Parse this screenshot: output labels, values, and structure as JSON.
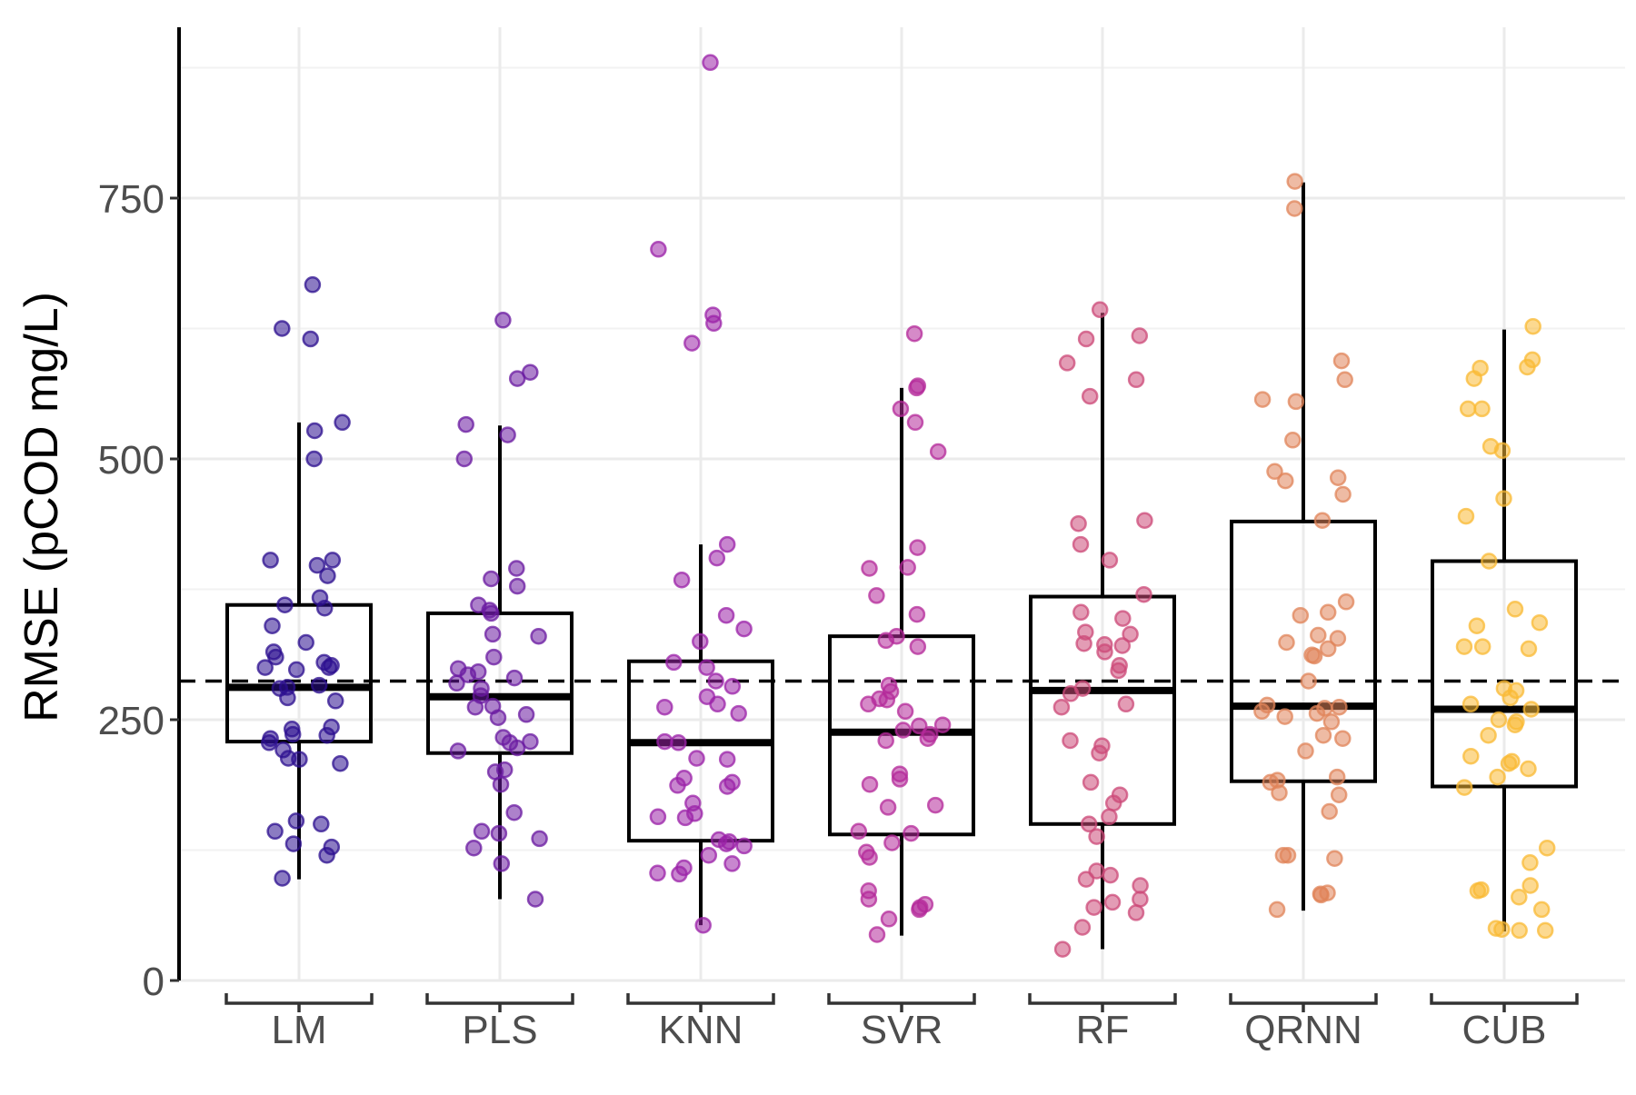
{
  "chart_data": {
    "type": "box",
    "ylabel": "RMSE (pCOD mg/L)",
    "xlabel": "",
    "ylim": [
      0,
      900
    ],
    "y_ticks": [
      "0",
      "250",
      "500",
      "750"
    ],
    "grid": true,
    "reference_line": {
      "y": 287,
      "style": "dashed",
      "color": "#000000"
    },
    "categories": [
      "LM",
      "PLS",
      "KNN",
      "SVR",
      "RF",
      "QRNN",
      "CUB"
    ],
    "colors": {
      "LM": "#2c0f8f",
      "PLS": "#6a1aa0",
      "KNN": "#9b22a8",
      "SVR": "#b42a9a",
      "RF": "#cc4a78",
      "QRNN": "#e0845a",
      "CUB": "#f9b934"
    },
    "boxes": [
      {
        "category": "LM",
        "whisker_low": 97,
        "q1": 229,
        "median": 281,
        "q3": 360,
        "whisker_high": 535
      },
      {
        "category": "PLS",
        "whisker_low": 78,
        "q1": 218,
        "median": 272,
        "q3": 352,
        "whisker_high": 532
      },
      {
        "category": "KNN",
        "whisker_low": 53,
        "q1": 134,
        "median": 228,
        "q3": 306,
        "whisker_high": 418
      },
      {
        "category": "SVR",
        "whisker_low": 43,
        "q1": 140,
        "median": 238,
        "q3": 330,
        "whisker_high": 568
      },
      {
        "category": "RF",
        "whisker_low": 30,
        "q1": 150,
        "median": 278,
        "q3": 368,
        "whisker_high": 640
      },
      {
        "category": "QRNN",
        "whisker_low": 67,
        "q1": 191,
        "median": 263,
        "q3": 440,
        "whisker_high": 765
      },
      {
        "category": "CUB",
        "whisker_low": 47,
        "q1": 186,
        "median": 260,
        "q3": 402,
        "whisker_high": 624
      }
    ],
    "points": [
      {
        "category": "LM",
        "values": [
          667,
          625,
          615,
          535,
          527,
          500,
          403,
          403,
          398,
          388,
          367,
          360,
          357,
          340,
          324,
          310,
          315,
          305,
          302,
          300,
          300,
          298,
          283,
          281,
          280,
          271,
          268,
          243,
          241,
          236,
          235,
          232,
          228,
          221,
          213,
          212,
          208,
          153,
          150,
          143,
          131,
          128,
          120,
          98
        ]
      },
      {
        "category": "PLS",
        "values": [
          633,
          583,
          577,
          533,
          523,
          500,
          395,
          385,
          378,
          360,
          355,
          352,
          332,
          330,
          310,
          299,
          296,
          293,
          290,
          285,
          280,
          273,
          263,
          262,
          255,
          252,
          233,
          229,
          228,
          223,
          220,
          202,
          200,
          188,
          161,
          143,
          141,
          136,
          127,
          112,
          78
        ]
      },
      {
        "category": "KNN",
        "values": [
          880,
          701,
          638,
          630,
          611,
          418,
          405,
          384,
          350,
          337,
          325,
          305,
          300,
          287,
          282,
          272,
          265,
          262,
          256,
          229,
          228,
          213,
          212,
          194,
          190,
          187,
          186,
          170,
          160,
          157,
          156,
          135,
          133,
          131,
          129,
          120,
          112,
          108,
          103,
          102,
          53
        ]
      },
      {
        "category": "SVR",
        "values": [
          620,
          570,
          568,
          548,
          535,
          507,
          415,
          395,
          396,
          369,
          351,
          330,
          326,
          320,
          283,
          277,
          270,
          269,
          265,
          258,
          245,
          244,
          240,
          236,
          232,
          230,
          198,
          193,
          188,
          168,
          166,
          143,
          141,
          132,
          123,
          118,
          86,
          78,
          73,
          70,
          68,
          59,
          44
        ]
      },
      {
        "category": "RF",
        "values": [
          643,
          618,
          615,
          592,
          576,
          560,
          441,
          438,
          418,
          403,
          370,
          353,
          347,
          334,
          332,
          323,
          322,
          321,
          315,
          302,
          297,
          280,
          275,
          265,
          262,
          230,
          225,
          218,
          190,
          178,
          170,
          157,
          150,
          138,
          105,
          101,
          97,
          91,
          78,
          75,
          70,
          65,
          51,
          30
        ]
      },
      {
        "category": "QRNN",
        "values": [
          766,
          740,
          594,
          576,
          557,
          555,
          518,
          488,
          482,
          479,
          466,
          441,
          363,
          353,
          350,
          331,
          328,
          324,
          318,
          312,
          311,
          287,
          264,
          262,
          261,
          258,
          256,
          253,
          248,
          235,
          232,
          220,
          195,
          192,
          190,
          180,
          178,
          162,
          120,
          120,
          117,
          84,
          83,
          82,
          68
        ]
      },
      {
        "category": "CUB",
        "values": [
          627,
          595,
          588,
          587,
          577,
          548,
          548,
          512,
          508,
          462,
          445,
          402,
          356,
          343,
          340,
          320,
          320,
          318,
          280,
          278,
          271,
          265,
          260,
          250,
          248,
          245,
          235,
          215,
          210,
          208,
          203,
          195,
          185,
          127,
          113,
          91,
          87,
          86,
          80,
          68,
          50,
          49,
          48,
          48
        ]
      }
    ]
  }
}
